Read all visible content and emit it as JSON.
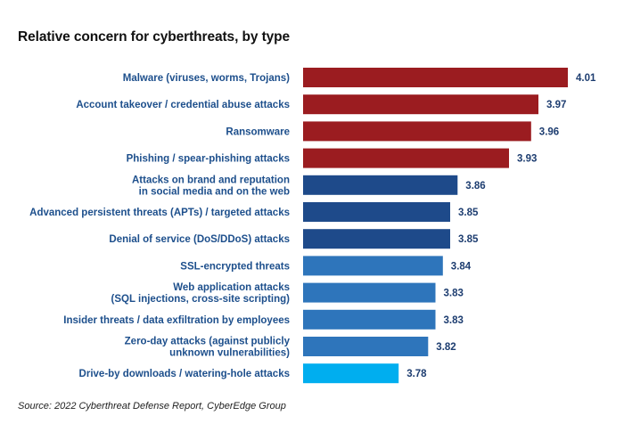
{
  "chart_data": {
    "type": "bar",
    "orientation": "horizontal",
    "title": "Relative concern for cyberthreats, by type",
    "source": "Source: 2022 Cyberthreat Defense Report, CyberEdge Group",
    "categories": [
      [
        "Malware (viruses, worms, Trojans)"
      ],
      [
        "Account takeover / credential abuse attacks"
      ],
      [
        "Ransomware"
      ],
      [
        "Phishing / spear-phishing attacks"
      ],
      [
        "Attacks on brand and reputation",
        "in social media and on the web"
      ],
      [
        "Advanced persistent threats (APTs) / targeted attacks"
      ],
      [
        "Denial of service (DoS/DDoS) attacks"
      ],
      [
        "SSL-encrypted threats"
      ],
      [
        "Web application attacks",
        "(SQL injections, cross-site scripting)"
      ],
      [
        "Insider threats / data exfiltration by employees"
      ],
      [
        "Zero-day attacks (against publicly",
        "unknown vulnerabilities)"
      ],
      [
        "Drive-by downloads / watering-hole attacks"
      ]
    ],
    "values": [
      4.01,
      3.97,
      3.96,
      3.93,
      3.86,
      3.85,
      3.85,
      3.84,
      3.83,
      3.83,
      3.82,
      3.78
    ],
    "value_labels": [
      "4.01",
      "3.97",
      "3.96",
      "3.93",
      "3.86",
      "3.85",
      "3.85",
      "3.84",
      "3.83",
      "3.83",
      "3.82",
      "3.78"
    ],
    "colors": [
      "#9b1c20",
      "#9b1c20",
      "#9b1c20",
      "#9b1c20",
      "#1e4a8a",
      "#1e4a8a",
      "#1e4a8a",
      "#2e75bb",
      "#2e75bb",
      "#2e75bb",
      "#2e75bb",
      "#00aeef"
    ],
    "value_axis_visible": false,
    "grid": false,
    "legend": "none"
  }
}
